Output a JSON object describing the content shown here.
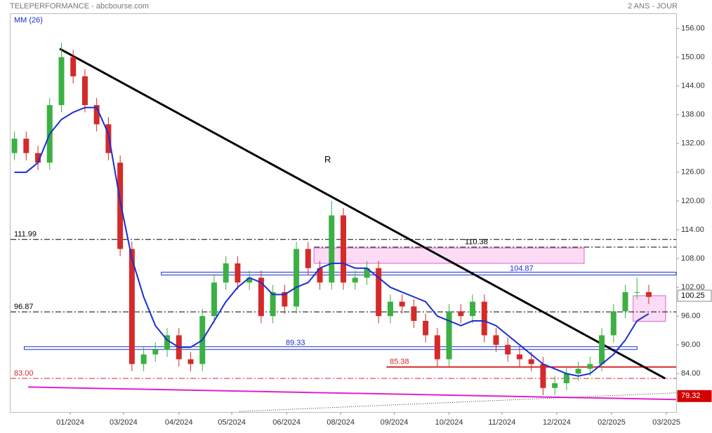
{
  "chart_data": {
    "type": "candlestick",
    "title": "TELEPERFORMANCE - abcbourse.com",
    "period": "2 ANS - JOUR",
    "indicator_label": "MM (26)",
    "xlim": [
      0,
      340
    ],
    "ylim": [
      76,
      159
    ],
    "xticks": [
      {
        "value": 30.5,
        "label": "01/2024"
      },
      {
        "value": 57.7,
        "label": "03/2024"
      },
      {
        "value": 86,
        "label": "04/2024"
      },
      {
        "value": 113,
        "label": "05/2024"
      },
      {
        "value": 141,
        "label": "06/2024"
      },
      {
        "value": 168.6,
        "label": "08/2024"
      },
      {
        "value": 196,
        "label": "09/2024"
      },
      {
        "value": 224,
        "label": "10/2024"
      },
      {
        "value": 251,
        "label": "11/2024"
      },
      {
        "value": 279,
        "label": "12/2024"
      },
      {
        "value": 307,
        "label": "02/2025"
      },
      {
        "value": 335,
        "label": "03/2025"
      }
    ],
    "yticks": [
      {
        "value": 84,
        "label": "84.00"
      },
      {
        "value": 90,
        "label": "90.00"
      },
      {
        "value": 96,
        "label": "96.00"
      },
      {
        "value": 102,
        "label": "102.00"
      },
      {
        "value": 108,
        "label": "108.00"
      },
      {
        "value": 114,
        "label": "114.00"
      },
      {
        "value": 120,
        "label": "120.00"
      },
      {
        "value": 126,
        "label": "126.00"
      },
      {
        "value": 132,
        "label": "132.00"
      },
      {
        "value": 138,
        "label": "138.00"
      },
      {
        "value": 144,
        "label": "144.00"
      },
      {
        "value": 150,
        "label": "150.00"
      },
      {
        "value": 156,
        "label": "156.00"
      }
    ],
    "x": [
      2,
      8,
      14,
      20,
      26,
      32,
      38,
      44,
      50,
      56,
      62,
      68,
      74,
      80,
      86,
      92,
      98,
      104,
      110,
      116,
      122,
      128,
      134,
      140,
      146,
      152,
      158,
      164,
      170,
      176,
      182,
      188,
      194,
      200,
      206,
      212,
      218,
      224,
      230,
      236,
      242,
      248,
      254,
      260,
      266,
      272,
      278,
      284,
      290,
      296,
      302,
      308,
      314,
      320,
      326
    ],
    "open": [
      130,
      133,
      130,
      128,
      140,
      150,
      146,
      140,
      136,
      128,
      110,
      86,
      88,
      89,
      92,
      87,
      86,
      96,
      103,
      107,
      103,
      104,
      96,
      101,
      98,
      110,
      106,
      103,
      117,
      103,
      104,
      106,
      96,
      99,
      98,
      95,
      92,
      87,
      97,
      96,
      99,
      92,
      90,
      88,
      87,
      86,
      81,
      82,
      84,
      85,
      86,
      92,
      97,
      101,
      101
    ],
    "high": [
      134.5,
      134.5,
      131.5,
      141.5,
      153,
      151.5,
      147.5,
      141.5,
      137.5,
      129.5,
      111.5,
      89.5,
      90.5,
      93.5,
      93.5,
      88.5,
      97.5,
      104.5,
      108.5,
      108.5,
      105.5,
      105.5,
      102.5,
      102.5,
      111.5,
      111.5,
      107.5,
      120,
      118.5,
      105.5,
      107.5,
      107.5,
      100.5,
      100.5,
      99.5,
      96.5,
      93.5,
      98.5,
      98.5,
      100.5,
      100.5,
      93.5,
      91.5,
      89.5,
      88.5,
      87.5,
      83.5,
      85.5,
      86.5,
      87.5,
      93.5,
      98.5,
      102.5,
      104,
      102.5
    ],
    "low": [
      128.5,
      128.5,
      126.5,
      126.5,
      138.5,
      144.5,
      138.5,
      134.5,
      128.5,
      108.5,
      84.5,
      84.5,
      86.5,
      87.5,
      85.5,
      84.5,
      84.5,
      94.5,
      101.5,
      101.5,
      101.5,
      94.5,
      94.5,
      96.5,
      96.5,
      104.5,
      101.5,
      101.5,
      101.5,
      101.5,
      102.5,
      94.5,
      94.5,
      96.5,
      93.5,
      90.5,
      85.5,
      85.5,
      94.5,
      94.5,
      90.5,
      88.5,
      86.5,
      85.5,
      84.5,
      79.5,
      79.5,
      80.5,
      82.5,
      83.5,
      84.5,
      90.5,
      95.5,
      99.5,
      98.5
    ],
    "close": [
      133,
      130,
      128,
      140,
      150,
      146,
      140,
      136,
      130,
      110,
      86,
      88,
      89,
      92,
      87,
      86,
      96,
      103,
      107,
      103,
      104,
      96,
      101,
      98,
      110,
      106,
      103,
      117,
      103,
      104,
      106,
      96,
      99,
      98,
      95,
      92,
      87,
      97,
      96,
      99,
      92,
      90,
      88,
      87,
      86,
      81,
      82,
      84,
      85,
      86,
      92,
      97,
      101,
      101,
      100
    ],
    "up_color": "#3cb043",
    "down_color": "#d42a2a",
    "ma": {
      "color": "#1a2fd0",
      "values": [
        126,
        126,
        128,
        134,
        137,
        138.5,
        139.5,
        139.5,
        134,
        120,
        108,
        100,
        94,
        91,
        89.5,
        89.5,
        91,
        95,
        99,
        102,
        104,
        103,
        100.5,
        100.5,
        102,
        103,
        106,
        107,
        107,
        106,
        106,
        104,
        102,
        101,
        100,
        99,
        96,
        95,
        94,
        95,
        95,
        94,
        92,
        90,
        88,
        86,
        85,
        84,
        83.5,
        84,
        86,
        88,
        91,
        95,
        96.5
      ]
    },
    "levels": [
      {
        "value": 111.99,
        "color": "#000000",
        "style": "dashdot",
        "from": 0,
        "to": 340
      },
      {
        "value": 110.38,
        "color": "#000000",
        "style": "dashdot",
        "from": 155,
        "to": 340
      },
      {
        "value": 104.87,
        "color": "#1a2fd0",
        "style": "double",
        "from": 77,
        "to": 340
      },
      {
        "value": 96.87,
        "color": "#000000",
        "style": "dashdot",
        "from": 0,
        "to": 340
      },
      {
        "value": 89.33,
        "color": "#1a2fd0",
        "style": "double",
        "from": 7,
        "to": 320
      },
      {
        "value": 85.38,
        "color": "#d42a2a",
        "style": "solid",
        "from": 192,
        "to": 340
      },
      {
        "value": 83,
        "label": "83.00",
        "color": "#d42a2a",
        "style": "dashdot",
        "from": 0,
        "to": 340
      }
    ],
    "trendlines": [
      {
        "x": [
          25.1,
          334.3
        ],
        "y": [
          151.76,
          83
        ],
        "color": "#000000",
        "width": 3
      },
      {
        "x": [
          9,
          340
        ],
        "y": [
          81.2,
          78.6
        ],
        "color": "#e020d0",
        "width": 2
      },
      {
        "x": [
          117,
          340
        ],
        "y": [
          76.1,
          80
        ],
        "color": "#333333",
        "width": 1,
        "dash": "1,2"
      }
    ],
    "zones": [
      {
        "x": [
          155,
          293
        ],
        "y": [
          107,
          110.2
        ]
      },
      {
        "x": [
          318,
          334.6
        ],
        "y": [
          94.9,
          100.25
        ]
      }
    ],
    "annotations": [
      {
        "text": "R",
        "x": 162,
        "y": 128.5
      }
    ],
    "price_tags": [
      {
        "value": 100.25,
        "style": "gray"
      },
      {
        "value": 79.32,
        "style": "red"
      }
    ]
  }
}
